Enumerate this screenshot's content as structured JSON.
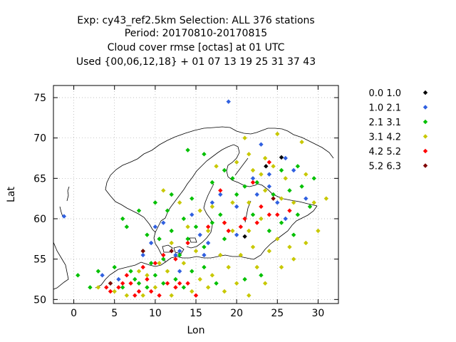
{
  "chart_data": {
    "type": "scatter",
    "title_lines": [
      "Exp: cy43_ref2.5km   Selection: ALL    376 stations",
      "Period: 20170810-20170815",
      "Cloud cover rmse [octas] at  01 UTC",
      "Used {00,06,12,18} + 01 07 13 19 25 31 37 43"
    ],
    "xlabel": "Lon",
    "ylabel": "Lat",
    "xlim": [
      -2.5,
      32.5
    ],
    "ylim": [
      49.5,
      76.5
    ],
    "xticks": [
      0,
      5,
      10,
      15,
      20,
      25,
      30
    ],
    "yticks": [
      50,
      55,
      60,
      65,
      70,
      75
    ],
    "grid": true,
    "legend_position": "right",
    "series": [
      {
        "name": "0.0 1.0",
        "color": "#000000",
        "points": [
          [
            25.5,
            67.6
          ],
          [
            23.6,
            66.5
          ],
          [
            21.0,
            57.8
          ]
        ]
      },
      {
        "name": "1.0 2.1",
        "color": "#3060e0",
        "points": [
          [
            19.0,
            74.5
          ],
          [
            -1.2,
            60.3
          ],
          [
            23.0,
            69.2
          ],
          [
            26.0,
            67.5
          ],
          [
            27.0,
            66.0
          ],
          [
            22.0,
            65.0
          ],
          [
            24.0,
            65.5
          ],
          [
            18.0,
            63.0
          ],
          [
            20.0,
            61.5
          ],
          [
            14.5,
            60.5
          ],
          [
            11.0,
            59.5
          ],
          [
            10.0,
            59.0
          ],
          [
            15.5,
            58.0
          ],
          [
            13.0,
            56.0
          ],
          [
            16.5,
            57.0
          ],
          [
            8.5,
            55.5
          ],
          [
            3.5,
            53.0
          ],
          [
            5.5,
            52.5
          ],
          [
            13.0,
            53.5
          ],
          [
            20.0,
            58.0
          ],
          [
            26.0,
            60.0
          ],
          [
            24.0,
            64.0
          ],
          [
            28.5,
            62.5
          ],
          [
            12.5,
            55.5
          ],
          [
            9.5,
            57.0
          ],
          [
            22.5,
            63.0
          ],
          [
            17.0,
            62.0
          ],
          [
            16.0,
            55.5
          ],
          [
            25.0,
            62.0
          ]
        ]
      },
      {
        "name": "2.1 3.1",
        "color": "#00c000",
        "points": [
          [
            14.0,
            68.5
          ],
          [
            16.0,
            68.0
          ],
          [
            18.5,
            66.0
          ],
          [
            17.0,
            64.5
          ],
          [
            19.5,
            65.0
          ],
          [
            21.0,
            64.0
          ],
          [
            22.5,
            64.5
          ],
          [
            25.5,
            66.0
          ],
          [
            27.5,
            66.5
          ],
          [
            24.5,
            63.0
          ],
          [
            26.5,
            63.5
          ],
          [
            28.0,
            64.0
          ],
          [
            29.5,
            65.0
          ],
          [
            12.0,
            63.0
          ],
          [
            10.0,
            62.0
          ],
          [
            8.0,
            61.0
          ],
          [
            6.0,
            60.0
          ],
          [
            11.5,
            61.0
          ],
          [
            13.5,
            60.0
          ],
          [
            15.0,
            59.0
          ],
          [
            17.0,
            59.5
          ],
          [
            12.0,
            58.5
          ],
          [
            9.0,
            58.0
          ],
          [
            6.5,
            59.0
          ],
          [
            14.0,
            57.5
          ],
          [
            16.0,
            56.5
          ],
          [
            18.5,
            57.5
          ],
          [
            10.5,
            57.5
          ],
          [
            8.5,
            56.0
          ],
          [
            11.0,
            55.0
          ],
          [
            13.0,
            55.5
          ],
          [
            9.5,
            54.5
          ],
          [
            7.0,
            53.5
          ],
          [
            10.0,
            53.0
          ],
          [
            12.5,
            52.5
          ],
          [
            14.5,
            53.5
          ],
          [
            4.5,
            52.0
          ],
          [
            6.0,
            51.5
          ],
          [
            8.0,
            52.0
          ],
          [
            11.0,
            52.0
          ],
          [
            13.5,
            51.5
          ],
          [
            3.0,
            53.5
          ],
          [
            5.0,
            54.0
          ],
          [
            7.5,
            52.5
          ],
          [
            9.0,
            51.5
          ],
          [
            16.0,
            54.0
          ],
          [
            17.5,
            52.0
          ],
          [
            21.0,
            52.5
          ],
          [
            23.0,
            53.0
          ],
          [
            25.5,
            59.5
          ],
          [
            27.5,
            60.5
          ],
          [
            29.0,
            61.5
          ],
          [
            24.0,
            58.5
          ],
          [
            27.0,
            58.0
          ],
          [
            22.0,
            60.5
          ],
          [
            20.0,
            63.0
          ],
          [
            0.5,
            53.0
          ],
          [
            2.0,
            51.5
          ],
          [
            18.0,
            60.5
          ],
          [
            14.5,
            62.5
          ]
        ]
      },
      {
        "name": "3.1 4.2",
        "color": "#c8c800",
        "points": [
          [
            21.0,
            70.0
          ],
          [
            25.0,
            70.5
          ],
          [
            28.0,
            69.5
          ],
          [
            21.5,
            68.0
          ],
          [
            23.5,
            67.5
          ],
          [
            20.0,
            67.0
          ],
          [
            17.5,
            66.5
          ],
          [
            22.0,
            66.0
          ],
          [
            24.5,
            66.5
          ],
          [
            26.0,
            65.0
          ],
          [
            28.5,
            65.5
          ],
          [
            23.5,
            63.5
          ],
          [
            25.5,
            62.5
          ],
          [
            27.0,
            62.0
          ],
          [
            29.5,
            62.0
          ],
          [
            31.0,
            62.5
          ],
          [
            21.5,
            62.0
          ],
          [
            19.5,
            62.0
          ],
          [
            17.0,
            61.5
          ],
          [
            15.5,
            61.0
          ],
          [
            13.0,
            62.0
          ],
          [
            11.0,
            63.5
          ],
          [
            18.5,
            59.5
          ],
          [
            16.5,
            58.5
          ],
          [
            14.0,
            59.0
          ],
          [
            19.5,
            58.5
          ],
          [
            21.5,
            58.5
          ],
          [
            23.0,
            60.0
          ],
          [
            25.0,
            57.5
          ],
          [
            26.5,
            56.5
          ],
          [
            24.0,
            56.0
          ],
          [
            22.0,
            56.5
          ],
          [
            20.5,
            55.5
          ],
          [
            18.0,
            55.5
          ],
          [
            15.0,
            56.0
          ],
          [
            12.0,
            57.0
          ],
          [
            9.0,
            53.0
          ],
          [
            11.5,
            53.5
          ],
          [
            13.5,
            54.5
          ],
          [
            15.5,
            52.5
          ],
          [
            17.0,
            53.0
          ],
          [
            19.0,
            54.0
          ],
          [
            20.0,
            52.0
          ],
          [
            22.5,
            54.0
          ],
          [
            23.5,
            52.0
          ],
          [
            10.0,
            51.5
          ],
          [
            12.0,
            50.5
          ],
          [
            8.5,
            50.5
          ],
          [
            6.5,
            50.5
          ],
          [
            3.0,
            51.5
          ],
          [
            5.0,
            51.0
          ],
          [
            8.0,
            53.5
          ],
          [
            10.5,
            54.5
          ],
          [
            14.5,
            51.0
          ],
          [
            16.5,
            51.5
          ],
          [
            18.5,
            51.0
          ],
          [
            21.5,
            50.5
          ],
          [
            25.5,
            54.0
          ],
          [
            27.0,
            55.0
          ],
          [
            28.5,
            57.0
          ],
          [
            30.0,
            58.5
          ],
          [
            23.0,
            65.5
          ]
        ]
      },
      {
        "name": "4.2 5.2",
        "color": "#ff0000",
        "points": [
          [
            18.5,
            59.5
          ],
          [
            19.0,
            58.5
          ],
          [
            20.5,
            59.0
          ],
          [
            22.5,
            59.5
          ],
          [
            24.0,
            60.5
          ],
          [
            25.0,
            60.5
          ],
          [
            26.5,
            61.0
          ],
          [
            23.0,
            61.5
          ],
          [
            21.0,
            60.0
          ],
          [
            18.0,
            63.5
          ],
          [
            11.0,
            55.5
          ],
          [
            12.5,
            55.0
          ],
          [
            10.0,
            54.5
          ],
          [
            8.5,
            54.0
          ],
          [
            7.0,
            52.0
          ],
          [
            6.0,
            52.0
          ],
          [
            4.5,
            51.0
          ],
          [
            4.0,
            51.5
          ],
          [
            6.5,
            53.0
          ],
          [
            9.0,
            52.5
          ],
          [
            11.5,
            52.0
          ],
          [
            13.0,
            52.0
          ],
          [
            10.5,
            50.5
          ],
          [
            12.5,
            51.5
          ],
          [
            14.0,
            52.0
          ],
          [
            15.0,
            50.5
          ],
          [
            9.5,
            51.0
          ],
          [
            8.0,
            51.0
          ],
          [
            7.5,
            50.5
          ],
          [
            5.5,
            51.5
          ],
          [
            16.5,
            59.0
          ],
          [
            14.0,
            57.0
          ],
          [
            22.0,
            64.5
          ],
          [
            24.0,
            67.0
          ]
        ]
      },
      {
        "name": "5.2 6.3",
        "color": "#800000",
        "points": [
          [
            8.5,
            56.0
          ],
          [
            4.5,
            52.0
          ],
          [
            12.0,
            56.0
          ],
          [
            24.5,
            62.5
          ]
        ]
      }
    ]
  }
}
